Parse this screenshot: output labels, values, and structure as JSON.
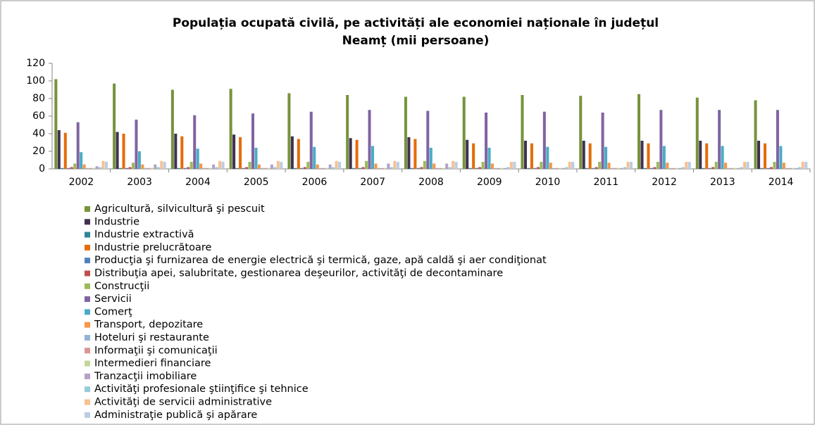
{
  "chart_data": {
    "type": "bar",
    "title": [
      "Populația ocupată civilă, pe activități ale economiei naționale în județul",
      "Neamț (mii persoane)"
    ],
    "categories": [
      "2002",
      "2003",
      "2004",
      "2005",
      "2006",
      "2007",
      "2008",
      "2009",
      "2010",
      "2011",
      "2012",
      "2013",
      "2014"
    ],
    "ylim": [
      0,
      120
    ],
    "yticks": [
      0,
      20,
      40,
      60,
      80,
      100,
      120
    ],
    "grid": false,
    "legend": "bottom",
    "series": [
      {
        "name": "Agricultură, silvicultură şi pescuit",
        "color": "#77933c",
        "values": [
          102,
          97,
          90,
          91,
          86,
          84,
          82,
          82,
          84,
          83,
          85,
          81,
          78
        ]
      },
      {
        "name": "Industrie",
        "color": "#403152",
        "values": [
          44,
          42,
          40,
          39,
          37,
          35,
          36,
          33,
          32,
          32,
          32,
          32,
          32
        ]
      },
      {
        "name": "Industrie extractivă",
        "color": "#31859c",
        "values": [
          1,
          1,
          1,
          1,
          1,
          1,
          1,
          1,
          1,
          1,
          1,
          1,
          1
        ]
      },
      {
        "name": "Industrie prelucrătoare",
        "color": "#e46c0a",
        "values": [
          41,
          40,
          37,
          36,
          34,
          33,
          34,
          29,
          29,
          29,
          29,
          29,
          29
        ]
      },
      {
        "name": "Producţia şi furnizarea de energie electrică şi termică, gaze, apă caldă şi aer condiţionat",
        "color": "#4f81bd",
        "values": [
          1,
          1,
          1,
          1,
          1,
          1,
          1,
          1,
          1,
          1,
          1,
          1,
          1
        ]
      },
      {
        "name": "Distribuţia apei, salubritate, gestionarea deşeurilor, activităţi de decontaminare",
        "color": "#c0504d",
        "values": [
          2,
          2,
          2,
          2,
          2,
          2,
          2,
          2,
          2,
          2,
          2,
          2,
          2
        ]
      },
      {
        "name": "Construcţii",
        "color": "#9bbb59",
        "values": [
          6,
          7,
          8,
          8,
          8,
          9,
          9,
          8,
          8,
          8,
          8,
          8,
          8
        ]
      },
      {
        "name": "Servicii",
        "color": "#8064a2",
        "values": [
          53,
          56,
          61,
          63,
          65,
          67,
          66,
          64,
          65,
          64,
          67,
          67,
          67
        ]
      },
      {
        "name": "Comerţ",
        "color": "#4bacc6",
        "values": [
          19,
          20,
          23,
          24,
          25,
          26,
          24,
          24,
          25,
          25,
          26,
          26,
          26
        ]
      },
      {
        "name": "Transport, depozitare",
        "color": "#f79646",
        "values": [
          5,
          5,
          6,
          5,
          5,
          6,
          6,
          6,
          7,
          7,
          7,
          7,
          7
        ]
      },
      {
        "name": "Hoteluri şi restaurante",
        "color": "#95b3d7",
        "values": [
          1,
          1,
          1,
          1,
          1,
          1,
          1,
          1,
          1,
          1,
          1,
          1,
          1
        ]
      },
      {
        "name": "Informaţii şi comunicaţii",
        "color": "#d99694",
        "values": [
          1,
          1,
          1,
          1,
          1,
          1,
          1,
          1,
          1,
          1,
          1,
          1,
          1
        ]
      },
      {
        "name": "Intermedieri financiare",
        "color": "#c3d69b",
        "values": [
          1,
          1,
          1,
          1,
          1,
          1,
          1,
          1,
          1,
          1,
          1,
          1,
          1
        ]
      },
      {
        "name": "Tranzacţii imobiliare",
        "color": "#b3a2c7",
        "values": [
          3,
          5,
          5,
          5,
          5,
          6,
          6,
          1,
          1,
          1,
          1,
          1,
          1
        ]
      },
      {
        "name": "Activităţi profesionale  ştiinţifice şi tehnice",
        "color": "#93cddd",
        "values": [
          2,
          2,
          2,
          2,
          2,
          2,
          2,
          2,
          2,
          2,
          2,
          2,
          2
        ]
      },
      {
        "name": "Activităţi de servicii administrative",
        "color": "#fac090",
        "values": [
          9,
          9,
          9,
          9,
          9,
          9,
          9,
          8,
          8,
          8,
          8,
          8,
          8
        ]
      },
      {
        "name": "Administraţie publică şi apărare",
        "color": "#b9cde5",
        "values": [
          8,
          8,
          8,
          8,
          8,
          8,
          8,
          8,
          8,
          8,
          8,
          8,
          8
        ]
      }
    ]
  }
}
